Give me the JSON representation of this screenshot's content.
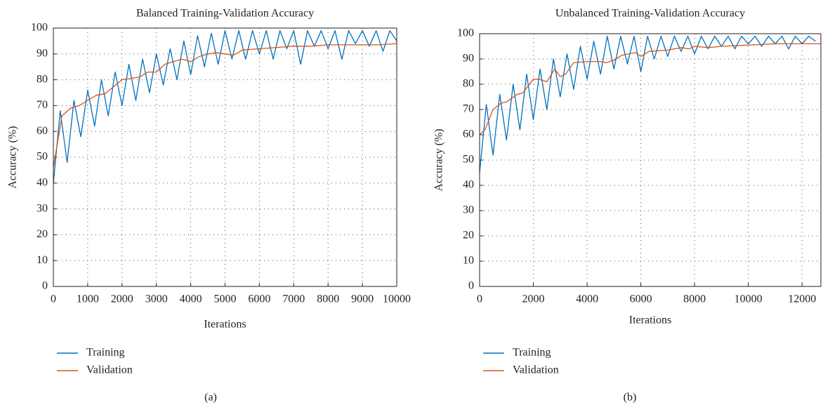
{
  "chart_data": [
    {
      "type": "line",
      "title": "Balanced Training-Validation Accuracy",
      "xlabel": "Iterations",
      "ylabel": "Accuracy (%)",
      "caption": "(a)",
      "xlim": [
        0,
        10000
      ],
      "ylim": [
        0,
        100
      ],
      "xticks": [
        0,
        1000,
        2000,
        3000,
        4000,
        5000,
        6000,
        7000,
        8000,
        9000,
        10000
      ],
      "yticks": [
        0,
        10,
        20,
        30,
        40,
        50,
        60,
        70,
        80,
        90,
        100
      ],
      "grid": true,
      "series": [
        {
          "name": "Training",
          "color": "#0072bd",
          "x": [
            0,
            200,
            400,
            600,
            800,
            1000,
            1200,
            1400,
            1600,
            1800,
            2000,
            2200,
            2400,
            2600,
            2800,
            3000,
            3200,
            3400,
            3600,
            3800,
            4000,
            4200,
            4400,
            4600,
            4800,
            5000,
            5200,
            5400,
            5600,
            5800,
            6000,
            6200,
            6400,
            6600,
            6800,
            7000,
            7200,
            7400,
            7600,
            7800,
            8000,
            8200,
            8400,
            8600,
            8800,
            9000,
            9200,
            9400,
            9600,
            9800,
            10000
          ],
          "values": [
            40,
            68,
            48,
            72,
            58,
            76,
            62,
            80,
            66,
            83,
            70,
            86,
            72,
            88,
            75,
            90,
            78,
            92,
            80,
            95,
            82,
            97,
            85,
            98,
            86,
            99,
            88,
            99,
            88,
            99,
            90,
            99,
            88,
            99,
            92,
            99,
            86,
            99,
            93,
            99,
            92,
            99,
            88,
            99,
            94,
            99,
            93,
            99,
            91,
            99,
            95
          ]
        },
        {
          "name": "Validation",
          "color": "#d95319",
          "x": [
            0,
            250,
            500,
            750,
            1000,
            1250,
            1500,
            2000,
            2500,
            2750,
            3000,
            3250,
            3500,
            3750,
            4000,
            4250,
            4500,
            4750,
            5000,
            5250,
            5500,
            6000,
            6500,
            7000,
            7500,
            8000,
            8500,
            9000,
            9500,
            10000
          ],
          "values": [
            46,
            66,
            69,
            70,
            72,
            74,
            74.5,
            80,
            81,
            83,
            83,
            86,
            87,
            88,
            87,
            89,
            90,
            90.5,
            90,
            89.5,
            91.5,
            92,
            92.5,
            93,
            93,
            93.5,
            93.5,
            93.5,
            93.5,
            94
          ]
        }
      ]
    },
    {
      "type": "line",
      "title": "Unbalanced Training-Validation Accuracy",
      "xlabel": "Iterations",
      "ylabel": "Accuracy (%)",
      "caption": "(b)",
      "xlim": [
        0,
        12700
      ],
      "ylim": [
        0,
        100
      ],
      "xticks": [
        0,
        2000,
        4000,
        6000,
        8000,
        10000,
        12000
      ],
      "yticks": [
        0,
        10,
        20,
        30,
        40,
        50,
        60,
        70,
        80,
        90,
        100
      ],
      "grid": true,
      "series": [
        {
          "name": "Training",
          "color": "#0072bd",
          "x": [
            0,
            250,
            500,
            750,
            1000,
            1250,
            1500,
            1750,
            2000,
            2250,
            2500,
            2750,
            3000,
            3250,
            3500,
            3750,
            4000,
            4250,
            4500,
            4750,
            5000,
            5250,
            5500,
            5750,
            6000,
            6250,
            6500,
            6750,
            7000,
            7250,
            7500,
            7750,
            8000,
            8250,
            8500,
            8750,
            9000,
            9250,
            9500,
            9750,
            10000,
            10250,
            10500,
            10750,
            11000,
            11250,
            11500,
            11750,
            12000,
            12250,
            12500
          ],
          "values": [
            45,
            72,
            52,
            76,
            58,
            80,
            62,
            84,
            66,
            86,
            70,
            90,
            75,
            92,
            78,
            95,
            82,
            97,
            84,
            99,
            86,
            99,
            88,
            99,
            85,
            99,
            90,
            99,
            91,
            99,
            93,
            99,
            92,
            99,
            94,
            99,
            95,
            99,
            94,
            99,
            96,
            99,
            95,
            99,
            96,
            99,
            94,
            99,
            96,
            99,
            97
          ]
        },
        {
          "name": "Validation",
          "color": "#d95319",
          "x": [
            0,
            200,
            500,
            800,
            1000,
            1400,
            1600,
            2000,
            2200,
            2500,
            2800,
            3000,
            3200,
            3500,
            4000,
            4500,
            4700,
            5000,
            5300,
            5800,
            6000,
            6300,
            7000,
            7500,
            7800,
            8000,
            8500,
            9000,
            10000,
            11000,
            12000,
            12700
          ],
          "values": [
            60,
            62,
            70,
            72.5,
            73,
            76,
            76.5,
            82,
            82,
            81,
            86,
            83,
            84,
            88.5,
            89,
            89,
            88.5,
            89.5,
            91.5,
            92.5,
            91,
            93,
            93.5,
            94.5,
            94,
            95,
            94.5,
            95,
            95.5,
            96,
            96,
            96
          ]
        }
      ]
    }
  ]
}
